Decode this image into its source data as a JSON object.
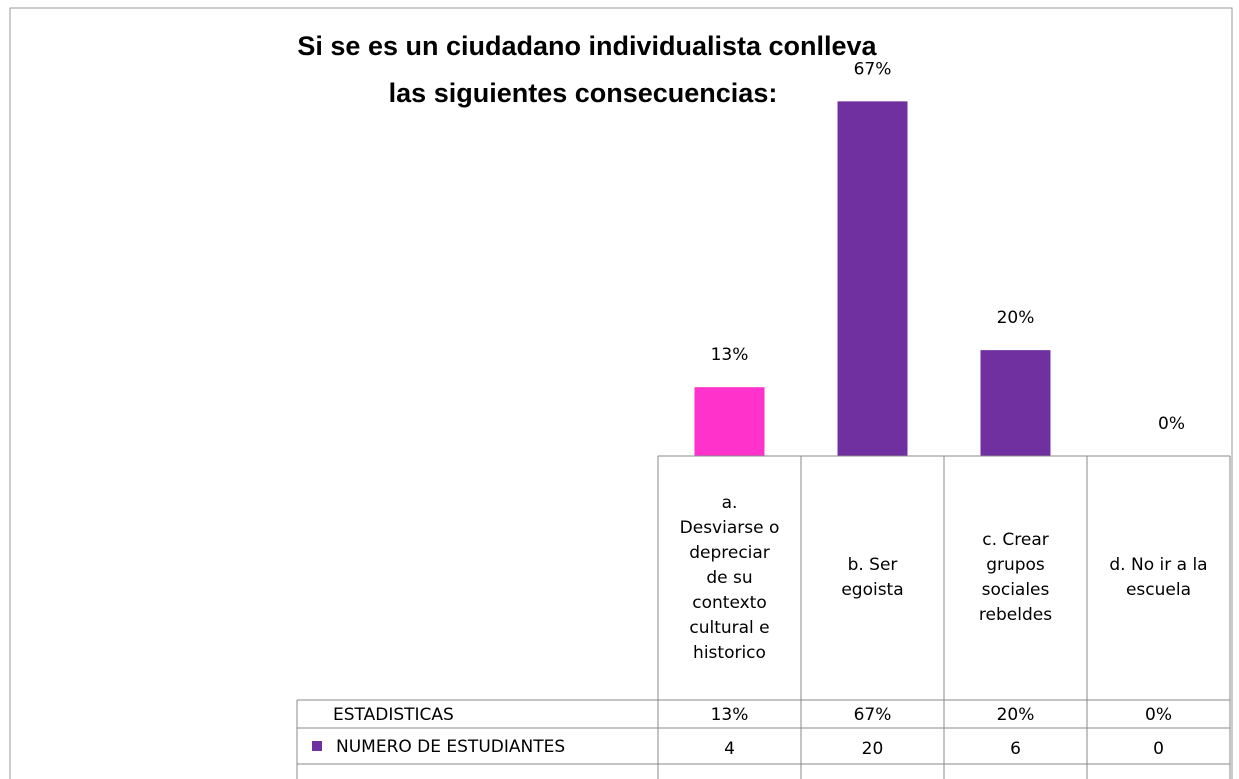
{
  "chart_data": {
    "type": "bar",
    "title": "Si se es un ciudadano individualista conlleva las siguientes consecuencias:",
    "categories": [
      "a. Desviarse o depreciar de su contexto cultural e historico",
      "b. Ser egoista",
      "c. Crear grupos sociales rebeldes",
      "d. No ir a la escuela"
    ],
    "ylim": [
      0,
      75
    ],
    "series": [
      {
        "name": "ESTADISTICAS",
        "values": [
          13,
          67,
          20,
          0
        ],
        "value_labels": [
          "13%",
          "67%",
          "20%",
          "0%"
        ],
        "colors": [
          "#ff33cc",
          "#7030a0",
          "#7030a0",
          "#7030a0"
        ]
      },
      {
        "name": "NUMERO DE ESTUDIANTES",
        "color": "#7030a0",
        "values": [
          4,
          20,
          6,
          0
        ]
      }
    ]
  }
}
